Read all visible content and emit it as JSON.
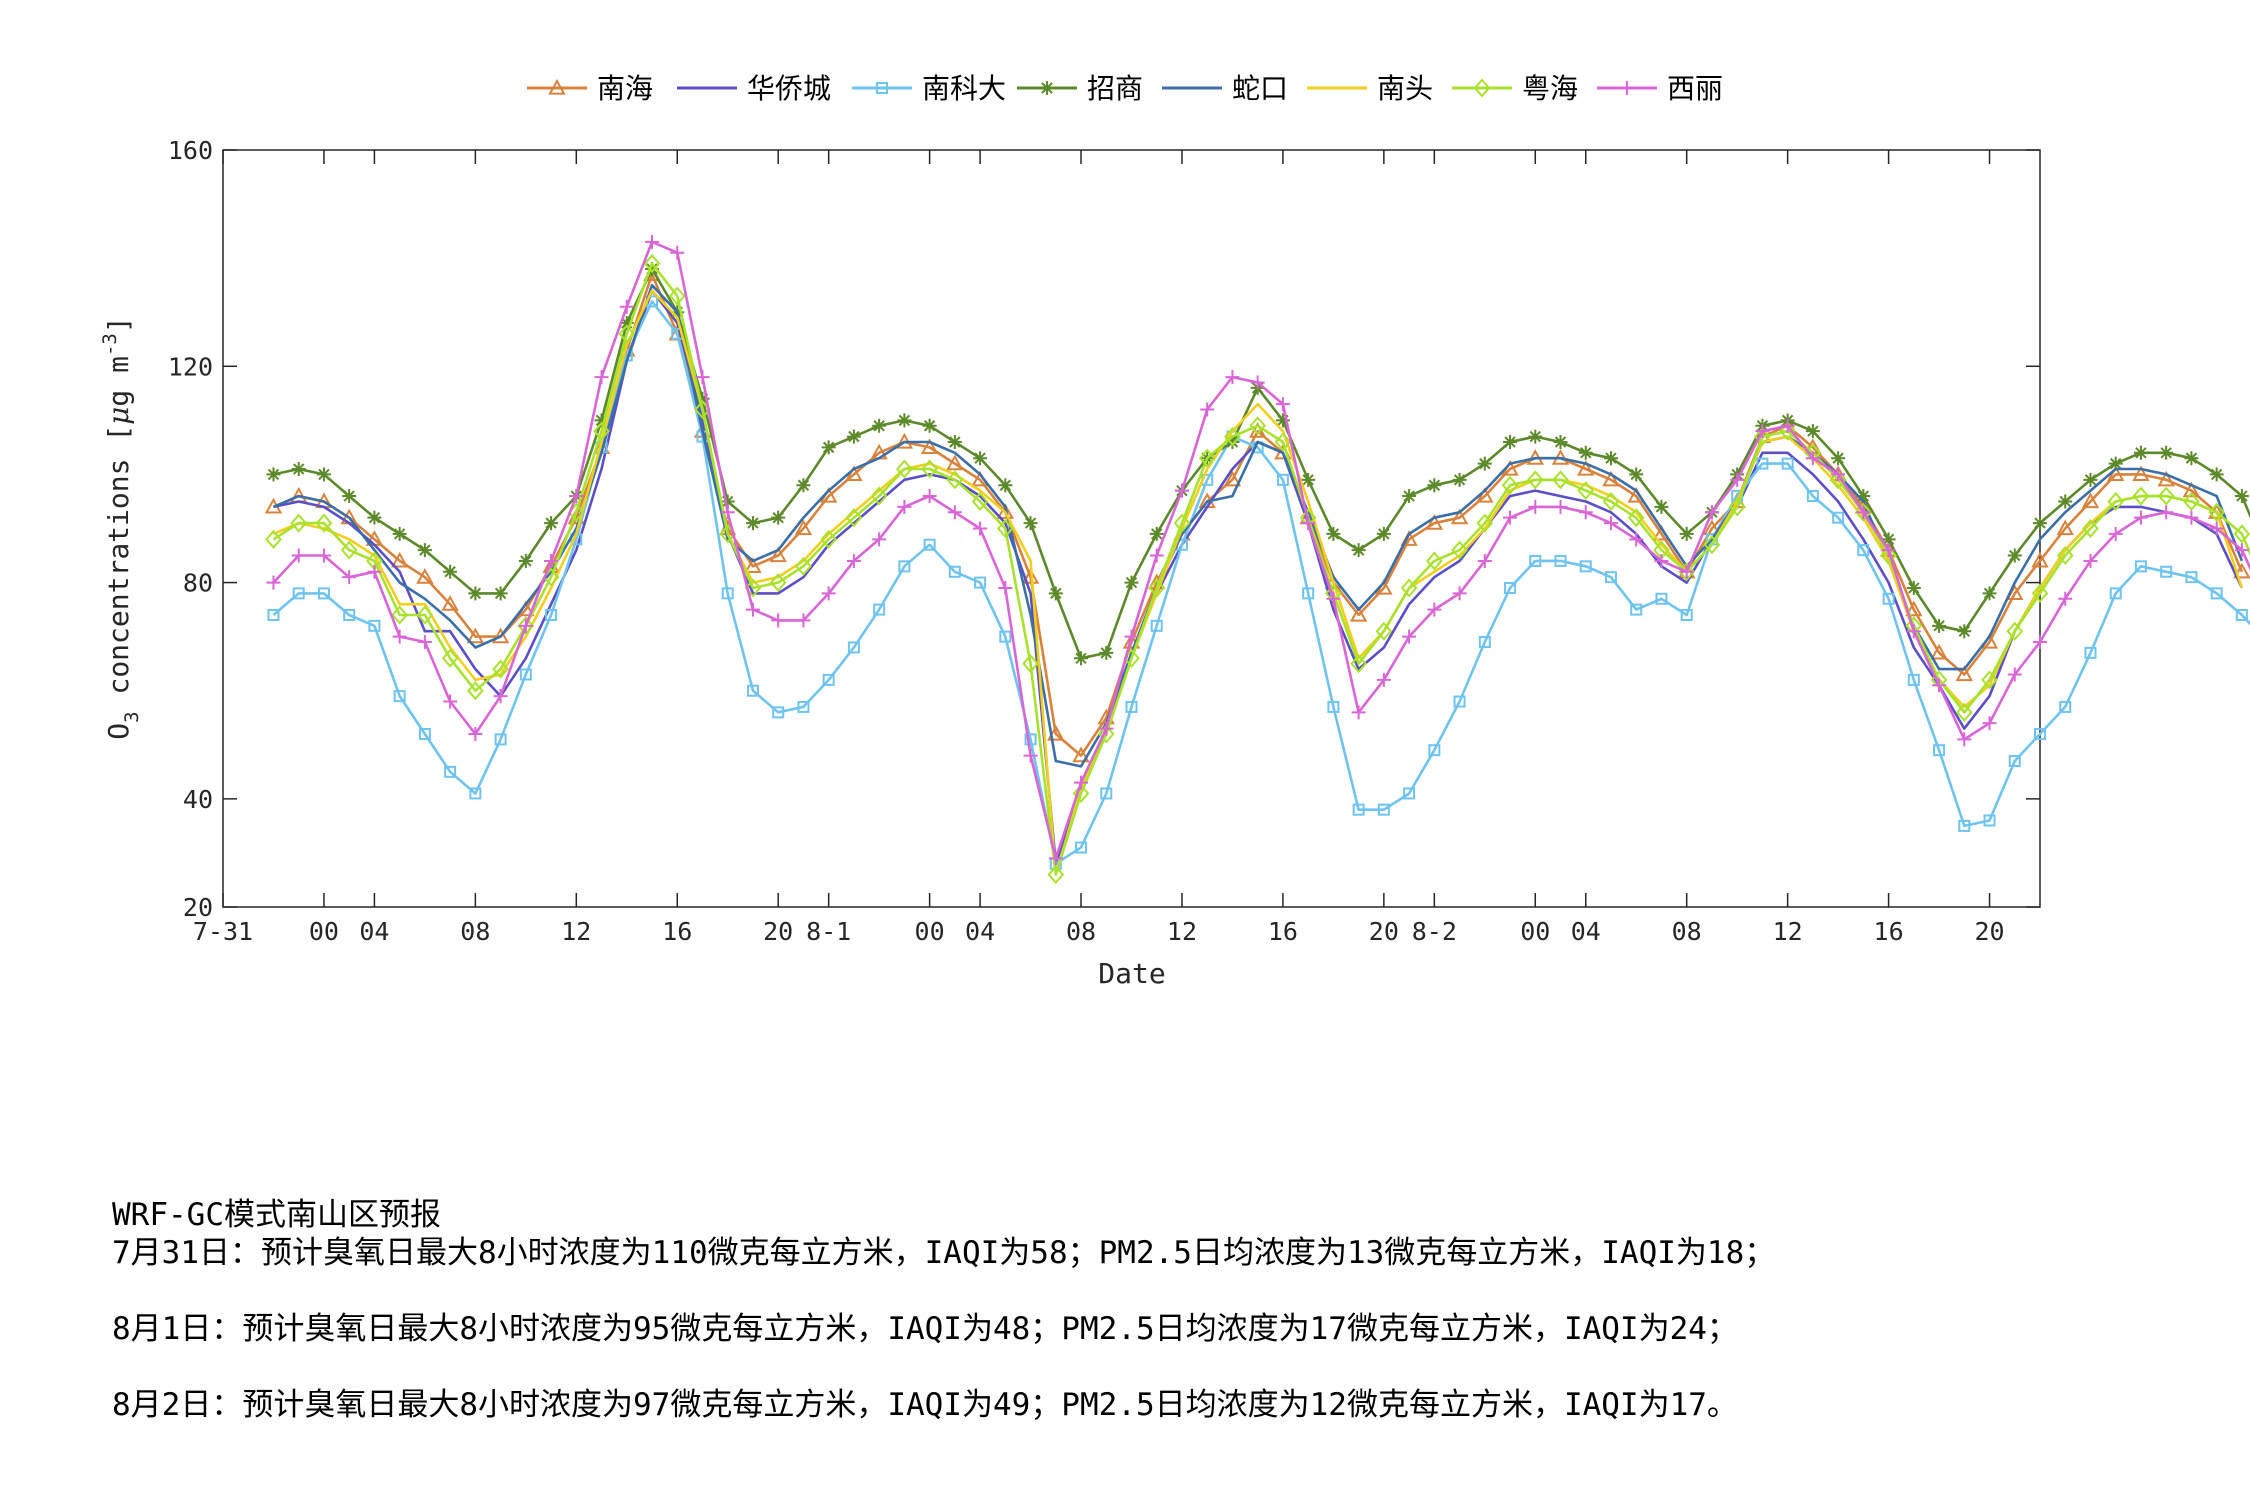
{
  "chart_data": {
    "type": "line",
    "title": "",
    "xlabel": "Date",
    "ylabel": "O3 concentrations [μg m-3]",
    "ylabel_parts": {
      "main": "O",
      "sub": "3",
      "rest": " concentrations [",
      "mu": "μ",
      "unit": "g m",
      "sup": "-3",
      "close": "]"
    },
    "ylim": [
      20,
      160
    ],
    "yticks": [
      20,
      40,
      80,
      120,
      160
    ],
    "xlim": [
      0,
      72
    ],
    "x_ticks": [
      {
        "x": 0,
        "label": "7-31"
      },
      {
        "x": 4,
        "label": "00"
      },
      {
        "x": 6,
        "label": "04"
      },
      {
        "x": 10,
        "label": "08"
      },
      {
        "x": 14,
        "label": "12"
      },
      {
        "x": 18,
        "label": "16"
      },
      {
        "x": 22,
        "label": "20"
      },
      {
        "x": 24,
        "label": "8-1"
      },
      {
        "x": 28,
        "label": "00"
      },
      {
        "x": 30,
        "label": "04"
      },
      {
        "x": 34,
        "label": "08"
      },
      {
        "x": 38,
        "label": "12"
      },
      {
        "x": 42,
        "label": "16"
      },
      {
        "x": 46,
        "label": "20"
      },
      {
        "x": 48,
        "label": "8-2"
      },
      {
        "x": 52,
        "label": "00"
      },
      {
        "x": 54,
        "label": "04"
      },
      {
        "x": 58,
        "label": "08"
      },
      {
        "x": 62,
        "label": "12"
      },
      {
        "x": 66,
        "label": "16"
      },
      {
        "x": 70,
        "label": "20"
      }
    ],
    "x_start": 2,
    "grid": false,
    "legend_position": "top-center",
    "series": [
      {
        "name": "南海",
        "color": "#d9823b",
        "marker": "triangle",
        "values": [
          94,
          96,
          95,
          92,
          88,
          84,
          81,
          76,
          70,
          70,
          75,
          83,
          92,
          105,
          123,
          137,
          126,
          108,
          90,
          83,
          85,
          90,
          96,
          100,
          104,
          106,
          105,
          102,
          99,
          93,
          81,
          52,
          48,
          55,
          69,
          80,
          89,
          95,
          99,
          108,
          104,
          92,
          80,
          74,
          79,
          88,
          91,
          92,
          96,
          101,
          103,
          103,
          101,
          99,
          96,
          89,
          82,
          90,
          95,
          107,
          109,
          105,
          100,
          94,
          86,
          75,
          67,
          63,
          69,
          78,
          84,
          90,
          95,
          100,
          100,
          99,
          97,
          93,
          82
        ]
      },
      {
        "name": "华侨城",
        "color": "#5b4fc7",
        "marker": "none",
        "values": [
          94,
          95,
          94,
          91,
          87,
          82,
          71,
          71,
          64,
          59,
          66,
          76,
          86,
          101,
          121,
          134,
          128,
          110,
          89,
          78,
          78,
          81,
          87,
          91,
          95,
          99,
          100,
          99,
          96,
          91,
          78,
          28,
          42,
          53,
          67,
          78,
          87,
          94,
          101,
          106,
          104,
          91,
          75,
          64,
          68,
          76,
          81,
          84,
          90,
          96,
          97,
          96,
          95,
          93,
          89,
          83,
          80,
          88,
          94,
          104,
          104,
          100,
          95,
          88,
          80,
          68,
          61,
          53,
          59,
          71,
          79,
          86,
          91,
          94,
          94,
          93,
          92,
          89,
          79
        ]
      },
      {
        "name": "南科大",
        "color": "#6ec4ef",
        "marker": "square",
        "values": [
          74,
          78,
          78,
          74,
          72,
          59,
          52,
          45,
          41,
          51,
          63,
          74,
          88,
          105,
          122,
          132,
          126,
          107,
          78,
          60,
          56,
          57,
          62,
          68,
          75,
          83,
          87,
          82,
          80,
          70,
          51,
          28,
          31,
          41,
          57,
          72,
          87,
          99,
          107,
          105,
          99,
          78,
          57,
          38,
          38,
          41,
          49,
          58,
          69,
          79,
          84,
          84,
          83,
          81,
          75,
          77,
          74,
          88,
          96,
          102,
          102,
          96,
          92,
          86,
          77,
          62,
          49,
          35,
          36,
          47,
          52,
          57,
          67,
          78,
          83,
          82,
          81,
          78,
          74,
          69
        ]
      },
      {
        "name": "招商",
        "color": "#5c8a2a",
        "marker": "star",
        "values": [
          100,
          101,
          100,
          96,
          92,
          89,
          86,
          82,
          78,
          78,
          84,
          91,
          96,
          110,
          128,
          138,
          130,
          114,
          95,
          91,
          92,
          98,
          105,
          107,
          109,
          110,
          109,
          106,
          103,
          98,
          91,
          78,
          66,
          67,
          80,
          89,
          97,
          103,
          106,
          116,
          110,
          99,
          89,
          86,
          89,
          96,
          98,
          99,
          102,
          106,
          107,
          106,
          104,
          103,
          100,
          94,
          89,
          93,
          100,
          109,
          110,
          108,
          103,
          96,
          88,
          79,
          72,
          71,
          78,
          85,
          91,
          95,
          99,
          102,
          104,
          104,
          103,
          100,
          96,
          85
        ]
      },
      {
        "name": "蛇口",
        "color": "#3a6fa8",
        "marker": "none",
        "values": [
          94,
          96,
          95,
          92,
          86,
          80,
          77,
          73,
          68,
          70,
          76,
          82,
          90,
          104,
          121,
          135,
          130,
          108,
          88,
          84,
          86,
          92,
          97,
          101,
          103,
          106,
          106,
          104,
          100,
          94,
          74,
          47,
          46,
          54,
          67,
          79,
          89,
          95,
          96,
          106,
          104,
          93,
          81,
          75,
          80,
          89,
          92,
          93,
          97,
          102,
          103,
          103,
          102,
          100,
          97,
          90,
          83,
          88,
          95,
          106,
          107,
          104,
          100,
          95,
          84,
          72,
          64,
          64,
          70,
          80,
          88,
          93,
          97,
          101,
          101,
          100,
          98,
          96,
          84
        ]
      },
      {
        "name": "南头",
        "color": "#f2cf1d",
        "marker": "none",
        "values": [
          89,
          91,
          90,
          88,
          85,
          76,
          76,
          68,
          62,
          63,
          70,
          79,
          89,
          106,
          124,
          134,
          129,
          112,
          89,
          80,
          81,
          84,
          89,
          93,
          97,
          101,
          102,
          100,
          97,
          93,
          84,
          26,
          42,
          52,
          66,
          78,
          90,
          101,
          108,
          113,
          108,
          95,
          80,
          66,
          71,
          79,
          82,
          85,
          90,
          97,
          99,
          99,
          98,
          96,
          93,
          87,
          82,
          87,
          95,
          106,
          107,
          103,
          98,
          92,
          84,
          71,
          62,
          57,
          61,
          71,
          79,
          86,
          91,
          95,
          96,
          96,
          95,
          93,
          79
        ]
      },
      {
        "name": "粤海",
        "color": "#a8e22c",
        "marker": "diamond",
        "values": [
          88,
          91,
          91,
          86,
          84,
          74,
          74,
          66,
          60,
          64,
          72,
          81,
          93,
          108,
          126,
          139,
          133,
          112,
          89,
          79,
          80,
          83,
          88,
          92,
          96,
          101,
          101,
          99,
          95,
          90,
          65,
          26,
          41,
          52,
          66,
          79,
          91,
          103,
          107,
          109,
          106,
          92,
          78,
          65,
          71,
          79,
          84,
          86,
          91,
          98,
          99,
          99,
          97,
          95,
          92,
          86,
          82,
          87,
          94,
          107,
          108,
          104,
          99,
          93,
          85,
          72,
          62,
          56,
          62,
          71,
          78,
          85,
          90,
          95,
          96,
          96,
          95,
          93,
          89,
          78
        ]
      },
      {
        "name": "西丽",
        "color": "#d965d6",
        "marker": "plus",
        "values": [
          80,
          85,
          85,
          81,
          82,
          70,
          69,
          58,
          52,
          59,
          72,
          84,
          96,
          118,
          131,
          143,
          141,
          118,
          93,
          75,
          73,
          73,
          78,
          84,
          88,
          94,
          96,
          93,
          90,
          79,
          48,
          29,
          43,
          53,
          70,
          85,
          97,
          112,
          118,
          117,
          113,
          91,
          77,
          56,
          62,
          70,
          75,
          78,
          84,
          92,
          94,
          94,
          93,
          91,
          88,
          84,
          82,
          93,
          99,
          108,
          109,
          103,
          100,
          93,
          86,
          71,
          61,
          51,
          54,
          63,
          69,
          77,
          84,
          89,
          92,
          93,
          92,
          90,
          86,
          76
        ]
      }
    ]
  },
  "forecast": {
    "title": "WRF-GC模式南山区预报",
    "line1": "7月31日：预计臭氧日最大8小时浓度为110微克每立方米，IAQI为58；PM2.5日均浓度为13微克每立方米，IAQI为18；",
    "line2": "8月1日：预计臭氧日最大8小时浓度为95微克每立方米，IAQI为48；PM2.5日均浓度为17微克每立方米，IAQI为24；",
    "line3": "8月2日：预计臭氧日最大8小时浓度为97微克每立方米，IAQI为49；PM2.5日均浓度为12微克每立方米，IAQI为17。"
  }
}
